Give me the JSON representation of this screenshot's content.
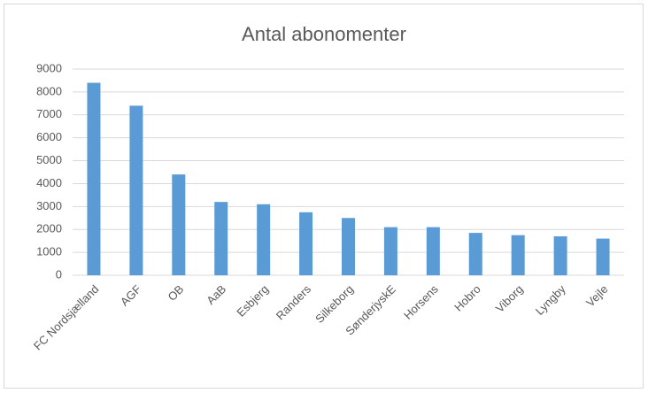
{
  "chart_data": {
    "type": "bar",
    "title": "Antal abonomenter",
    "categories": [
      "FC Nordsjælland",
      "AGF",
      "OB",
      "AaB",
      "Esbjerg",
      "Randers",
      "Silkeborg",
      "SønderjyskE",
      "Horsens",
      "Hobro",
      "Viborg",
      "Lyngby",
      "Vejle"
    ],
    "values": [
      8400,
      7400,
      4400,
      3200,
      3100,
      2750,
      2500,
      2100,
      2100,
      1850,
      1750,
      1700,
      1600
    ],
    "color": "#5b9bd5",
    "ylim": [
      0,
      9000
    ],
    "yticks": [
      0,
      1000,
      2000,
      3000,
      4000,
      5000,
      6000,
      7000,
      8000,
      9000
    ],
    "grid": true
  }
}
